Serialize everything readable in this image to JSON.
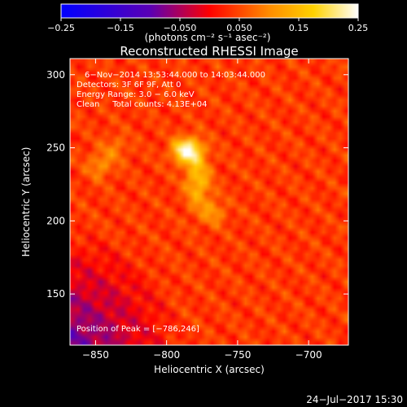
{
  "chart_data": {
    "type": "heatmap",
    "title": "Reconstructed RHESSI Image",
    "xlabel": "Heliocentric X (arcsec)",
    "ylabel": "Heliocentric Y (arcsec)",
    "xlim": [
      -868,
      -672
    ],
    "ylim": [
      115,
      311
    ],
    "x_ticks": [
      -850,
      -800,
      -750,
      -700
    ],
    "y_ticks": [
      150,
      200,
      250,
      300
    ],
    "x_tick_labels": [
      "−850",
      "−800",
      "−750",
      "−700"
    ],
    "y_tick_labels": [
      "150",
      "200",
      "250",
      "300"
    ],
    "colorbar": {
      "min": -0.25,
      "max": 0.25,
      "ticks": [
        -0.25,
        -0.15,
        -0.05,
        0.05,
        0.15,
        0.25
      ],
      "tick_labels": [
        "−0.25",
        "−0.15",
        "−0.050",
        "0.050",
        "0.15",
        "0.25"
      ],
      "units_label": "(photons cm⁻² s⁻¹ asec⁻²)",
      "colormap": [
        "#0000ff",
        "#5a00b4",
        "#ff0000",
        "#ff8c00",
        "#ffd200",
        "#ffffff"
      ]
    },
    "annotations": [
      "6−Nov−2014 13:53:44.000 to 14:03:44.000",
      "Detectors: 3F 6F 9F, Att 0",
      "Energy Range: 3.0 − 6.0 keV",
      "Clean     Total counts: 4.13E+04"
    ],
    "peak_label": "Position of Peak = [−786,246]",
    "peak": {
      "x": -786,
      "y": 246
    },
    "sources": [
      {
        "x": -786,
        "y": 248,
        "sx": 6.5,
        "sy": 5.5,
        "amp": 0.25
      },
      {
        "x": -778,
        "y": 228,
        "sx": 6,
        "sy": 13,
        "amp": 0.12
      },
      {
        "x": -767,
        "y": 206,
        "sx": 6,
        "sy": 6,
        "amp": 0.07
      },
      {
        "x": -847,
        "y": 238,
        "sx": 6,
        "sy": 6,
        "amp": 0.07
      },
      {
        "x": -836,
        "y": 250,
        "sx": 6,
        "sy": 6,
        "amp": 0.05
      }
    ],
    "background_level": 0.04
  },
  "footer": {
    "timestamp": "24−Jul−2017 15:30"
  }
}
